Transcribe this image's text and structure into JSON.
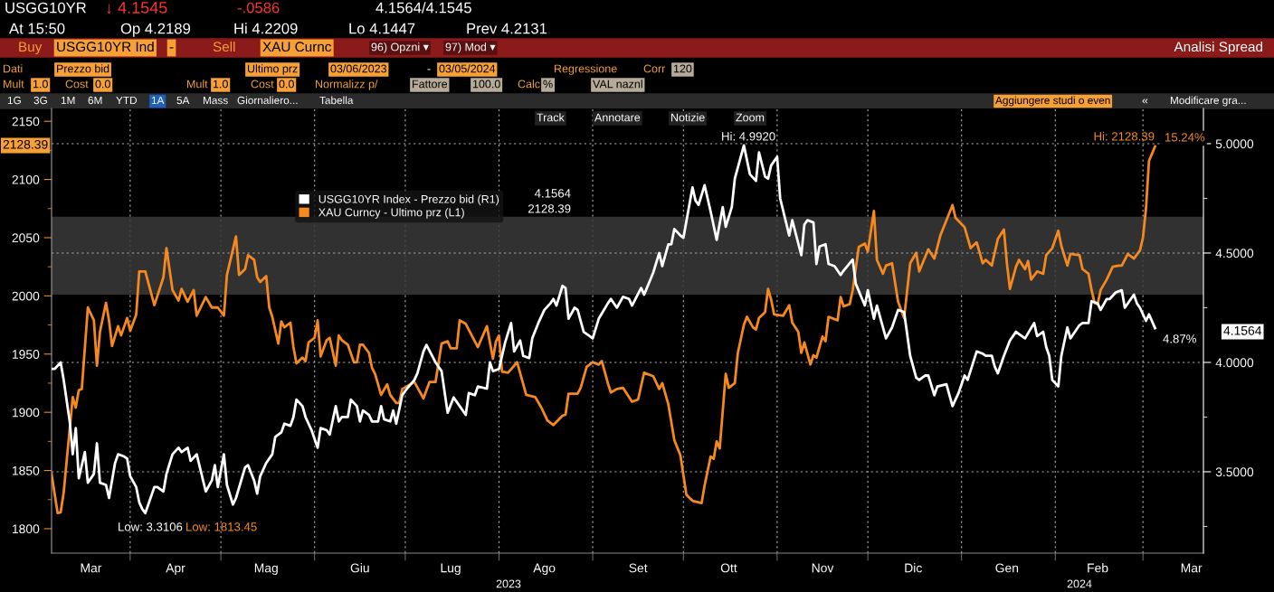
{
  "chart_data": {
    "type": "line",
    "xlim": [
      "2023-03-06",
      "2024-03-21"
    ],
    "xticks": [
      {
        "value": "2023-03-19",
        "label": "Mar"
      },
      {
        "value": "2023-04-01",
        "label": null
      },
      {
        "value": "2023-04-16",
        "label": "Apr"
      },
      {
        "value": "2023-05-01",
        "label": null
      },
      {
        "value": "2023-05-16",
        "label": "Mag"
      },
      {
        "value": "2023-06-01",
        "label": null
      },
      {
        "value": "2023-06-16",
        "label": "Giu"
      },
      {
        "value": "2023-07-01",
        "label": null
      },
      {
        "value": "2023-07-16",
        "label": "Lug"
      },
      {
        "value": "2023-08-01",
        "label": null
      },
      {
        "value": "2023-08-16",
        "label": "Ago"
      },
      {
        "value": "2023-09-01",
        "label": null
      },
      {
        "value": "2023-09-16",
        "label": "Set"
      },
      {
        "value": "2023-10-01",
        "label": null
      },
      {
        "value": "2023-10-16",
        "label": "Ott"
      },
      {
        "value": "2023-11-01",
        "label": null
      },
      {
        "value": "2023-11-16",
        "label": "Nov"
      },
      {
        "value": "2023-12-01",
        "label": null
      },
      {
        "value": "2023-12-16",
        "label": "Dic"
      },
      {
        "value": "2024-01-01",
        "label": null
      },
      {
        "value": "2024-01-16",
        "label": "Gen"
      },
      {
        "value": "2024-02-01",
        "label": null
      },
      {
        "value": "2024-02-15",
        "label": "Feb"
      },
      {
        "value": "2024-03-01",
        "label": null
      },
      {
        "value": "2024-03-17",
        "label": "Mar"
      }
    ],
    "ylim": [
      1779,
      2161
    ],
    "yticks": [
      1800,
      {
        "value": 1825,
        "label": null
      },
      1850,
      {
        "value": 1875,
        "label": null
      },
      1900,
      {
        "value": 1925,
        "label": null
      },
      1950,
      {
        "value": 1975,
        "label": null
      },
      2000,
      {
        "value": 2025,
        "label": null
      },
      2050,
      {
        "value": 2075,
        "label": null
      },
      2100,
      {
        "value": 2125,
        "label": null
      },
      2150
    ],
    "y2lim": [
      3.128,
      5.161
    ],
    "y2ticks": [
      {
        "value": 3.25,
        "label": null
      },
      {
        "value": 3.5,
        "label": "3.5000"
      },
      {
        "value": 3.75,
        "label": null
      },
      {
        "value": 4.0,
        "label": "4.0000"
      },
      {
        "value": 4.25,
        "label": null
      },
      {
        "value": 4.5,
        "label": "4.5000"
      },
      {
        "value": 4.75,
        "label": null
      },
      {
        "value": 5.0,
        "label": "5.0000"
      }
    ],
    "grid": true,
    "legend": "top left",
    "bands": [
      {
        "axis": "y",
        "from": 2001,
        "to": 2068,
        "color": "#3a3a3a"
      }
    ],
    "series": [
      {
        "name": "USGG10YR Index - Prezzo bid (R1)",
        "color": "#ffffff",
        "axis": "y2",
        "x": [
          "2023-03-06",
          "2023-03-07",
          "2023-03-09",
          "2023-03-10",
          "2023-03-12",
          "2023-03-13",
          "2023-03-14",
          "2023-03-15",
          "2023-03-17",
          "2023-03-18",
          "2023-03-20",
          "2023-03-21",
          "2023-03-22",
          "2023-03-24",
          "2023-03-25",
          "2023-03-27",
          "2023-03-28",
          "2023-03-30",
          "2023-03-31",
          "2023-04-01",
          "2023-04-03",
          "2023-04-04",
          "2023-04-05",
          "2023-04-06",
          "2023-04-09",
          "2023-04-10",
          "2023-04-12",
          "2023-04-13",
          "2023-04-15",
          "2023-04-17",
          "2023-04-18",
          "2023-04-20",
          "2023-04-21",
          "2023-04-23",
          "2023-04-26",
          "2023-04-28",
          "2023-04-29",
          "2023-04-30",
          "2023-05-02",
          "2023-05-03",
          "2023-05-05",
          "2023-05-06",
          "2023-05-09",
          "2023-05-10",
          "2023-05-12",
          "2023-05-13",
          "2023-05-14",
          "2023-05-16",
          "2023-05-18",
          "2023-05-19",
          "2023-05-21",
          "2023-05-22",
          "2023-05-24",
          "2023-05-25",
          "2023-05-26",
          "2023-05-28",
          "2023-05-29",
          "2023-05-31",
          "2023-06-01",
          "2023-06-02",
          "2023-06-03",
          "2023-06-05",
          "2023-06-06",
          "2023-06-08",
          "2023-06-09",
          "2023-06-10",
          "2023-06-12",
          "2023-06-13",
          "2023-06-15",
          "2023-06-16",
          "2023-06-17",
          "2023-06-19",
          "2023-06-20",
          "2023-06-22",
          "2023-06-23",
          "2023-06-24",
          "2023-06-26",
          "2023-06-27",
          "2023-06-28",
          "2023-06-30",
          "2023-07-01",
          "2023-07-04",
          "2023-07-05",
          "2023-07-07",
          "2023-07-08",
          "2023-07-11",
          "2023-07-13",
          "2023-07-15",
          "2023-07-17",
          "2023-07-19",
          "2023-07-21",
          "2023-07-22",
          "2023-07-24",
          "2023-07-25",
          "2023-07-28",
          "2023-07-29",
          "2023-07-30",
          "2023-08-01",
          "2023-08-03",
          "2023-08-05",
          "2023-08-06",
          "2023-08-08",
          "2023-08-09",
          "2023-08-11",
          "2023-08-12",
          "2023-08-14",
          "2023-08-16",
          "2023-08-18",
          "2023-08-19",
          "2023-08-20",
          "2023-08-22",
          "2023-08-23",
          "2023-08-24",
          "2023-08-26",
          "2023-08-27",
          "2023-08-29",
          "2023-09-01",
          "2023-09-03",
          "2023-09-06",
          "2023-09-07",
          "2023-09-09",
          "2023-09-11",
          "2023-09-13",
          "2023-09-14",
          "2023-09-17",
          "2023-09-18",
          "2023-09-21",
          "2023-09-23",
          "2023-09-24",
          "2023-09-26",
          "2023-09-27",
          "2023-09-28",
          "2023-09-30",
          "2023-10-01",
          "2023-10-04",
          "2023-10-05",
          "2023-10-06",
          "2023-10-08",
          "2023-10-10",
          "2023-10-12",
          "2023-10-14",
          "2023-10-15",
          "2023-10-17",
          "2023-10-18",
          "2023-10-21",
          "2023-10-23",
          "2023-10-25",
          "2023-10-26",
          "2023-10-28",
          "2023-10-29",
          "2023-10-30",
          "2023-11-01",
          "2023-11-02",
          "2023-11-05",
          "2023-11-06",
          "2023-11-09",
          "2023-11-10",
          "2023-11-11",
          "2023-11-13",
          "2023-11-14",
          "2023-11-15",
          "2023-11-17",
          "2023-11-18",
          "2023-11-20",
          "2023-11-22",
          "2023-11-23",
          "2023-11-26",
          "2023-11-27",
          "2023-11-30",
          "2023-12-01",
          "2023-12-03",
          "2023-12-04",
          "2023-12-07",
          "2023-12-09",
          "2023-12-11",
          "2023-12-13",
          "2023-12-15",
          "2023-12-17",
          "2023-12-18",
          "2023-12-20",
          "2023-12-21",
          "2023-12-23",
          "2023-12-24",
          "2023-12-27",
          "2023-12-29",
          "2023-12-31",
          "2024-01-02",
          "2024-01-03",
          "2024-01-06",
          "2024-01-08",
          "2024-01-09",
          "2024-01-11",
          "2024-01-12",
          "2024-01-13",
          "2024-01-15",
          "2024-01-17",
          "2024-01-19",
          "2024-01-20",
          "2024-01-22",
          "2024-01-25",
          "2024-01-26",
          "2024-01-28",
          "2024-01-29",
          "2024-01-30",
          "2024-01-31",
          "2024-02-02",
          "2024-02-03",
          "2024-02-05",
          "2024-02-06",
          "2024-02-07",
          "2024-02-09",
          "2024-02-10",
          "2024-02-12",
          "2024-02-13",
          "2024-02-15",
          "2024-02-16",
          "2024-02-18",
          "2024-02-19",
          "2024-02-21",
          "2024-02-23",
          "2024-02-24",
          "2024-02-27",
          "2024-02-28",
          "2024-02-29",
          "2024-03-02",
          "2024-03-03",
          "2024-03-05"
        ],
        "values": [
          3.97,
          3.97,
          4.0,
          3.92,
          3.73,
          3.58,
          3.7,
          3.47,
          3.59,
          3.45,
          3.49,
          3.63,
          3.45,
          3.44,
          3.38,
          3.54,
          3.58,
          3.57,
          3.56,
          3.48,
          3.43,
          3.36,
          3.33,
          3.3106,
          3.43,
          3.43,
          3.41,
          3.49,
          3.58,
          3.61,
          3.59,
          3.61,
          3.55,
          3.58,
          3.41,
          3.46,
          3.53,
          3.43,
          3.58,
          3.44,
          3.35,
          3.38,
          3.52,
          3.53,
          3.46,
          3.4,
          3.48,
          3.54,
          3.58,
          3.66,
          3.68,
          3.72,
          3.71,
          3.75,
          3.83,
          3.8,
          3.75,
          3.69,
          3.65,
          3.61,
          3.7,
          3.69,
          3.67,
          3.8,
          3.73,
          3.75,
          3.75,
          3.83,
          3.8,
          3.73,
          3.78,
          3.76,
          3.73,
          3.73,
          3.8,
          3.74,
          3.73,
          3.78,
          3.72,
          3.85,
          3.87,
          3.92,
          3.95,
          4.05,
          4.08,
          4.0,
          3.96,
          3.77,
          3.84,
          3.8,
          3.76,
          3.86,
          3.85,
          3.89,
          3.88,
          4.0,
          3.96,
          3.97,
          4.09,
          4.18,
          4.05,
          4.1,
          4.03,
          4.02,
          4.11,
          4.18,
          4.24,
          4.27,
          4.29,
          4.26,
          4.35,
          4.34,
          4.2,
          4.25,
          4.24,
          4.14,
          4.11,
          4.2,
          4.27,
          4.29,
          4.25,
          4.3,
          4.29,
          4.26,
          4.34,
          4.31,
          4.41,
          4.5,
          4.44,
          4.54,
          4.54,
          4.61,
          4.58,
          4.57,
          4.8,
          4.74,
          4.72,
          4.81,
          4.69,
          4.56,
          4.71,
          4.62,
          4.71,
          4.84,
          4.992,
          4.86,
          4.83,
          4.96,
          4.85,
          4.84,
          4.9,
          4.94,
          4.75,
          4.58,
          4.65,
          4.49,
          4.63,
          4.65,
          4.64,
          4.45,
          4.53,
          4.54,
          4.45,
          4.44,
          4.4,
          4.42,
          4.47,
          4.36,
          4.26,
          4.33,
          4.2,
          4.26,
          4.11,
          4.16,
          4.24,
          4.23,
          4.03,
          3.93,
          3.92,
          3.94,
          3.94,
          3.85,
          3.89,
          3.9,
          3.8,
          3.86,
          3.94,
          3.92,
          4.05,
          4.04,
          4.03,
          4.03,
          3.98,
          3.95,
          4.03,
          4.1,
          4.14,
          4.13,
          4.11,
          4.18,
          4.12,
          4.14,
          4.07,
          4.03,
          3.92,
          3.89,
          4.03,
          4.16,
          4.11,
          4.13,
          4.17,
          4.18,
          4.18,
          4.28,
          4.27,
          4.24,
          4.29,
          4.29,
          4.32,
          4.33,
          4.25,
          4.31,
          4.27,
          4.25,
          4.19,
          4.22,
          4.1564
        ]
      },
      {
        "name": "XAU Curncy - Ultimo prz (L1)",
        "color": "#f5891f",
        "x": [
          "2023-03-06",
          "2023-03-08",
          "2023-03-09",
          "2023-03-10",
          "2023-03-13",
          "2023-03-14",
          "2023-03-15",
          "2023-03-16",
          "2023-03-18",
          "2023-03-20",
          "2023-03-21",
          "2023-03-22",
          "2023-03-24",
          "2023-03-25",
          "2023-03-26",
          "2023-03-28",
          "2023-03-29",
          "2023-03-31",
          "2023-04-01",
          "2023-04-03",
          "2023-04-04",
          "2023-04-06",
          "2023-04-09",
          "2023-04-12",
          "2023-04-13",
          "2023-04-15",
          "2023-04-17",
          "2023-04-18",
          "2023-04-20",
          "2023-04-22",
          "2023-04-23",
          "2023-04-26",
          "2023-04-28",
          "2023-04-30",
          "2023-05-02",
          "2023-05-03",
          "2023-05-05",
          "2023-05-06",
          "2023-05-07",
          "2023-05-09",
          "2023-05-10",
          "2023-05-12",
          "2023-05-13",
          "2023-05-14",
          "2023-05-16",
          "2023-05-17",
          "2023-05-18",
          "2023-05-20",
          "2023-05-21",
          "2023-05-22",
          "2023-05-24",
          "2023-05-25",
          "2023-05-26",
          "2023-05-28",
          "2023-05-29",
          "2023-05-30",
          "2023-06-01",
          "2023-06-02",
          "2023-06-03",
          "2023-06-05",
          "2023-06-06",
          "2023-06-08",
          "2023-06-09",
          "2023-06-10",
          "2023-06-12",
          "2023-06-14",
          "2023-06-15",
          "2023-06-16",
          "2023-06-17",
          "2023-06-19",
          "2023-06-20",
          "2023-06-21",
          "2023-06-23",
          "2023-06-25",
          "2023-06-26",
          "2023-06-28",
          "2023-06-29",
          "2023-06-30",
          "2023-07-04",
          "2023-07-07",
          "2023-07-09",
          "2023-07-11",
          "2023-07-13",
          "2023-07-15",
          "2023-07-16",
          "2023-07-18",
          "2023-07-19",
          "2023-07-21",
          "2023-07-25",
          "2023-07-28",
          "2023-07-30",
          "2023-07-31",
          "2023-08-01",
          "2023-08-02",
          "2023-08-04",
          "2023-08-07",
          "2023-08-10",
          "2023-08-13",
          "2023-08-15",
          "2023-08-17",
          "2023-08-19",
          "2023-08-22",
          "2023-08-23",
          "2023-08-24",
          "2023-08-27",
          "2023-08-28",
          "2023-08-30",
          "2023-09-01",
          "2023-09-03",
          "2023-09-04",
          "2023-09-06",
          "2023-09-07",
          "2023-09-09",
          "2023-09-11",
          "2023-09-14",
          "2023-09-16",
          "2023-09-18",
          "2023-09-21",
          "2023-09-23",
          "2023-09-24",
          "2023-09-26",
          "2023-09-28",
          "2023-09-30",
          "2023-10-02",
          "2023-10-04",
          "2023-10-07",
          "2023-10-08",
          "2023-10-10",
          "2023-10-11",
          "2023-10-12",
          "2023-10-13",
          "2023-10-15",
          "2023-10-16",
          "2023-10-18",
          "2023-10-19",
          "2023-10-21",
          "2023-10-22",
          "2023-10-24",
          "2023-10-25",
          "2023-10-26",
          "2023-10-28",
          "2023-10-29",
          "2023-10-30",
          "2023-10-31",
          "2023-11-03",
          "2023-11-05",
          "2023-11-06",
          "2023-11-08",
          "2023-11-09",
          "2023-11-10",
          "2023-11-12",
          "2023-11-13",
          "2023-11-14",
          "2023-11-16",
          "2023-11-17",
          "2023-11-18",
          "2023-11-21",
          "2023-11-22",
          "2023-11-23",
          "2023-11-25",
          "2023-11-26",
          "2023-11-28",
          "2023-11-30",
          "2023-12-01",
          "2023-12-03",
          "2023-12-04",
          "2023-12-06",
          "2023-12-07",
          "2023-12-09",
          "2023-12-11",
          "2023-12-12",
          "2023-12-13",
          "2023-12-15",
          "2023-12-17",
          "2023-12-18",
          "2023-12-21",
          "2023-12-23",
          "2023-12-25",
          "2023-12-27",
          "2023-12-29",
          "2023-12-30",
          "2024-01-02",
          "2024-01-04",
          "2024-01-06",
          "2024-01-08",
          "2024-01-09",
          "2024-01-11",
          "2024-01-13",
          "2024-01-15",
          "2024-01-16",
          "2024-01-17",
          "2024-01-19",
          "2024-01-20",
          "2024-01-22",
          "2024-01-23",
          "2024-01-24",
          "2024-01-26",
          "2024-01-28",
          "2024-01-29",
          "2024-01-31",
          "2024-02-02",
          "2024-02-03",
          "2024-02-05",
          "2024-02-06",
          "2024-02-09",
          "2024-02-10",
          "2024-02-12",
          "2024-02-13",
          "2024-02-14",
          "2024-02-15",
          "2024-02-16",
          "2024-02-18",
          "2024-02-20",
          "2024-02-22",
          "2024-02-23",
          "2024-02-25",
          "2024-02-27",
          "2024-02-29",
          "2024-03-01",
          "2024-03-02",
          "2024-03-03",
          "2024-03-05"
        ],
        "values": [
          1847,
          1813.45,
          1814,
          1831,
          1913,
          1904,
          1919,
          1920,
          1990,
          1979,
          1940,
          1969,
          1994,
          1979,
          1957,
          1974,
          1966,
          1981,
          1970,
          1984,
          2021,
          2021,
          1992,
          2016,
          2041,
          2005,
          1996,
          2006,
          1995,
          2005,
          1983,
          1999,
          1990,
          1990,
          1983,
          2018,
          2040,
          2051,
          2018,
          2023,
          2035,
          2031,
          2016,
          2012,
          2017,
          1990,
          1982,
          1959,
          1978,
          1973,
          1977,
          1956,
          1942,
          1947,
          1944,
          1960,
          1964,
          1979,
          1948,
          1962,
          1964,
          1940,
          1966,
          1962,
          1958,
          1943,
          1943,
          1958,
          1958,
          1951,
          1938,
          1933,
          1915,
          1924,
          1915,
          1908,
          1908,
          1920,
          1926,
          1912,
          1926,
          1926,
          1959,
          1961,
          1955,
          1955,
          1979,
          1976,
          1956,
          1974,
          1946,
          1961,
          1966,
          1935,
          1934,
          1943,
          1915,
          1913,
          1904,
          1893,
          1889,
          1897,
          1898,
          1916,
          1916,
          1921,
          1939,
          1943,
          1941,
          1944,
          1925,
          1917,
          1920,
          1921,
          1909,
          1911,
          1934,
          1931,
          1920,
          1925,
          1907,
          1876,
          1863,
          1829,
          1824,
          1822,
          1837,
          1862,
          1860,
          1875,
          1869,
          1933,
          1921,
          1925,
          1951,
          1975,
          1982,
          1973,
          1971,
          1981,
          1986,
          2006,
          1997,
          1984,
          1983,
          1992,
          1977,
          1969,
          1951,
          1960,
          1941,
          1949,
          1947,
          1965,
          1961,
          1982,
          1979,
          1999,
          1991,
          1993,
          2005,
          2042,
          2045,
          2038,
          2073,
          2031,
          2019,
          2026,
          2028,
          1995,
          1988,
          1981,
          2028,
          2037,
          2021,
          2040,
          2032,
          2052,
          2065,
          2078,
          2067,
          2059,
          2041,
          2046,
          2028,
          2031,
          2026,
          2049,
          2057,
          2028,
          2006,
          2025,
          2031,
          2023,
          2030,
          2014,
          2021,
          2019,
          2035,
          2041,
          2056,
          2043,
          2026,
          2036,
          2035,
          2023,
          2019,
          2005,
          1994,
          1993,
          2005,
          2014,
          2025,
          2026,
          2026,
          2036,
          2032,
          2039,
          2050,
          2075,
          2116,
          2128.39
        ]
      }
    ],
    "annotations": [
      "USGG10YR",
      "↓ 4.1545",
      "-.0586",
      "4.1564/4.1545",
      "At 15:50",
      "Op 4.2189",
      "Hi 4.2209",
      "Lo 4.1447",
      "Prev 4.2131",
      "Buy",
      "USGG10YR Ind",
      "-",
      "Sell",
      "XAU Curnc",
      "96) Opzni ▾",
      "97) Mod ▾",
      "Analisi Spread",
      "Dati",
      "Prezzo bid",
      "Ultimo prz",
      "03/06/2023",
      "-",
      "03/05/2024",
      "Regressione",
      "Corr",
      "120",
      "Mult",
      "1.0",
      "Cost",
      "0.0",
      "Mult",
      "1.0",
      "Cost",
      "0.0",
      "Normalizz p/",
      "Fattore",
      "100.0",
      "Calc",
      "%",
      "VAL naznl",
      "1G",
      "3G",
      "1M",
      "6M",
      "YTD",
      "1A",
      "5A",
      "Mass",
      "Giornaliero...",
      "Tabella",
      "Aggiungere studi o even",
      "«",
      "Modificare gra...",
      "Track",
      "Annotare",
      "Notizie",
      "Zoom",
      "Hi: 4.9920",
      "Low: 3.3106",
      "Low: 1813.45",
      "Hi: 2128.39",
      "15.24%",
      "4.87%",
      "2128.39",
      "4.1564",
      "4.1564",
      "2128.39",
      "2023",
      "2024"
    ]
  }
}
